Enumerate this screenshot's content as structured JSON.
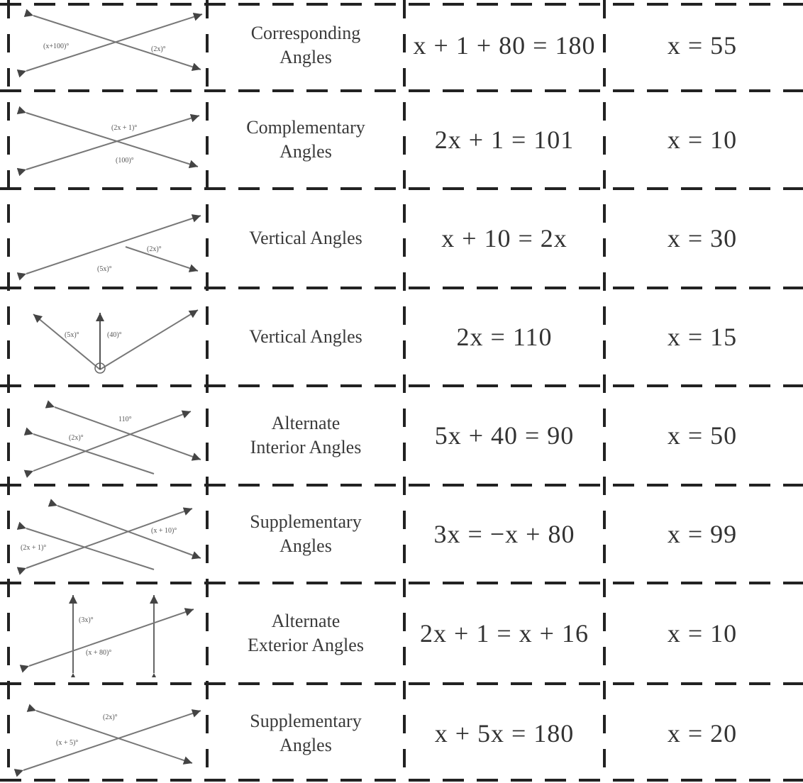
{
  "rows": [
    {
      "diagram": "diagram-1",
      "labels": [
        "(x+100)°",
        "(2x)°"
      ],
      "angle_type": "Corresponding\nAngles",
      "equation": "x + 1 + 80 = 180",
      "answer": "x = 55"
    },
    {
      "diagram": "diagram-2",
      "labels": [
        "(2x + 1)°",
        "(100)°"
      ],
      "angle_type": "Complementary\nAngles",
      "equation": "2x + 1 = 101",
      "answer": "x = 10"
    },
    {
      "diagram": "diagram-3",
      "labels": [
        "(2x)°",
        "(5x)°"
      ],
      "angle_type": "Vertical Angles",
      "equation": "x + 10 = 2x",
      "answer": "x = 30"
    },
    {
      "diagram": "diagram-4",
      "labels": [
        "(5x)°",
        "(40)°"
      ],
      "angle_type": "Vertical Angles",
      "equation": "2x = 110",
      "answer": "x = 15"
    },
    {
      "diagram": "diagram-5",
      "labels": [
        "110°",
        "(2x)°"
      ],
      "angle_type": "Alternate\nInterior Angles",
      "equation": "5x + 40 = 90",
      "answer": "x = 50"
    },
    {
      "diagram": "diagram-6",
      "labels": [
        "(x + 10)°",
        "(2x + 1)°"
      ],
      "angle_type": "Supplementary\nAngles",
      "equation": "3x = −x + 80",
      "answer": "x = 99"
    },
    {
      "diagram": "diagram-7",
      "labels": [
        "(3x)°",
        "(x + 80)°"
      ],
      "angle_type": "Alternate\nExterior Angles",
      "equation": "2x + 1 = x + 16",
      "answer": "x = 10"
    },
    {
      "diagram": "diagram-8",
      "labels": [
        "(2x)°",
        "(x + 5)°"
      ],
      "angle_type": "Supplementary\nAngles",
      "equation": "x + 5x = 180",
      "answer": "x = 20"
    }
  ]
}
